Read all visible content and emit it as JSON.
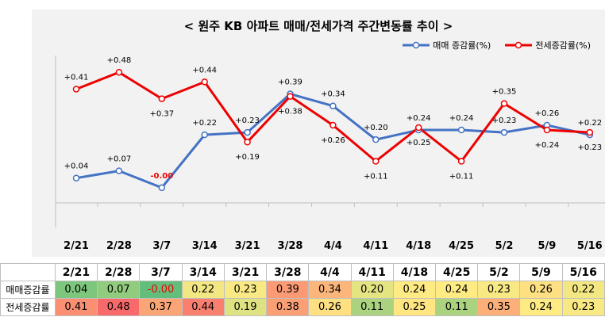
{
  "colors": {
    "series1": "#4472c4",
    "series2": "#ee0000",
    "negative_label": "#ee0000",
    "table_scale": [
      "#63be7b",
      "#ffeb84",
      "#f8696b"
    ]
  },
  "chart_data": {
    "type": "line",
    "title": "< 원주 KB 아파트 매매/전세가격 주간변동률 추이 >",
    "categories": [
      "2/21",
      "2/28",
      "3/7",
      "3/14",
      "3/21",
      "3/28",
      "4/4",
      "4/11",
      "4/18",
      "4/25",
      "5/2",
      "5/9",
      "5/16"
    ],
    "series": [
      {
        "name": "매매 증감률(%)",
        "values": [
          0.04,
          0.07,
          -0.0,
          0.22,
          0.23,
          0.39,
          0.34,
          0.2,
          0.24,
          0.24,
          0.23,
          0.26,
          0.22
        ],
        "labels": [
          "+0.04",
          "+0.07",
          "-0.00",
          "+0.22",
          "+0.23",
          "+0.39",
          "+0.34",
          "+0.20",
          "+0.24",
          "+0.24",
          "+0.23",
          "+0.26",
          "+0.22"
        ]
      },
      {
        "name": "전세증감률(%)",
        "values": [
          0.41,
          0.48,
          0.37,
          0.44,
          0.19,
          0.38,
          0.26,
          0.11,
          0.25,
          0.11,
          0.35,
          0.24,
          0.23
        ],
        "labels": [
          "+0.41",
          "+0.48",
          "+0.37",
          "+0.44",
          "+0.19",
          "+0.38",
          "+0.26",
          "+0.11",
          "+0.25",
          "+0.11",
          "+0.35",
          "+0.24",
          "+0.23"
        ]
      }
    ],
    "ylim": [
      -0.05,
      0.55
    ],
    "legend_position": "top-right",
    "grid": false
  },
  "table": {
    "row_labels": [
      "매매증감률",
      "전세증감률"
    ],
    "rows": [
      [
        "0.04",
        "0.07",
        "-0.00",
        "0.22",
        "0.23",
        "0.39",
        "0.34",
        "0.20",
        "0.24",
        "0.24",
        "0.23",
        "0.26",
        "0.22"
      ],
      [
        "0.41",
        "0.48",
        "0.37",
        "0.44",
        "0.19",
        "0.38",
        "0.26",
        "0.11",
        "0.25",
        "0.11",
        "0.35",
        "0.24",
        "0.23"
      ]
    ]
  }
}
